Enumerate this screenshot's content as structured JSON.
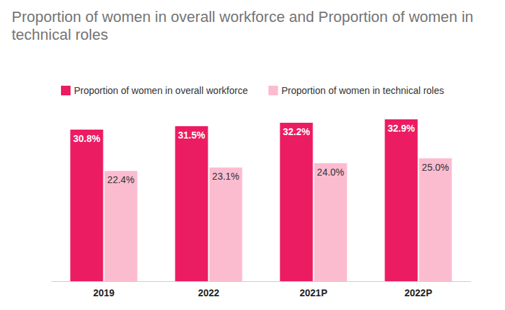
{
  "chart_data": {
    "type": "bar",
    "title": "Proportion of women in overall workforce and Proportion of women in technical roles",
    "categories": [
      "2019",
      "2022",
      "2021P",
      "2022P"
    ],
    "series": [
      {
        "name": "Proportion of women in overall workforce",
        "color": "#ec1c62",
        "values": [
          30.8,
          31.5,
          32.2,
          32.9
        ],
        "value_labels": [
          "30.8%",
          "31.5%",
          "32.2%",
          "32.9%"
        ]
      },
      {
        "name": "Proportion of women in technical roles",
        "color": "#fcbcd0",
        "values": [
          22.4,
          23.1,
          24.0,
          25.0
        ],
        "value_labels": [
          "22.4%",
          "23.1%",
          "24.0%",
          "25.0%"
        ]
      }
    ],
    "ylim": [
      0,
      35
    ],
    "grid": false,
    "legend": "top",
    "data_labels": true,
    "tick_labels": "x"
  }
}
